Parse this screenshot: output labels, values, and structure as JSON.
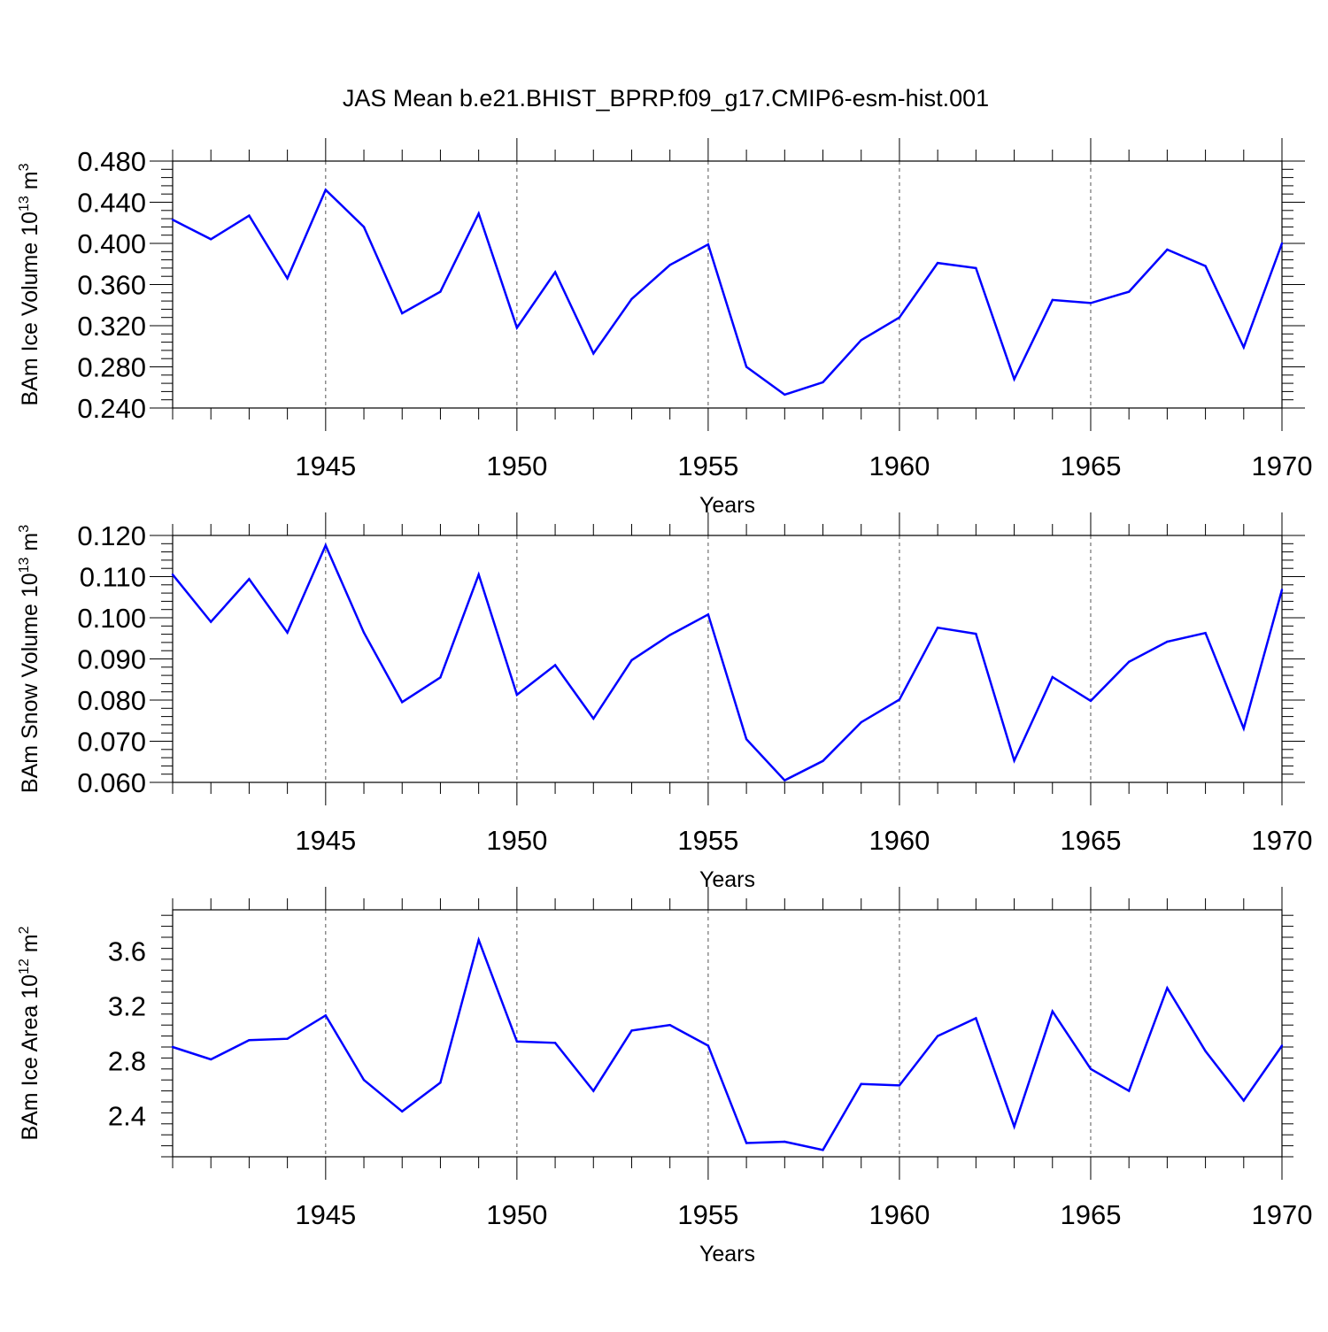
{
  "title": "JAS Mean b.e21.BHIST_BPRP.f09_g17.CMIP6-esm-hist.001",
  "colors": {
    "line": "#0000ff",
    "axis": "#000000",
    "grid": "#555555"
  },
  "chart_data": [
    {
      "type": "line",
      "ylabel_prefix": "BAm Ice Volume 10",
      "ylabel_exp": "13",
      "ylabel_unit": " m",
      "ylabel_unit_exp": "3",
      "xlabel": "Years",
      "xlim": [
        1941,
        1970
      ],
      "ylim": [
        0.24,
        0.48
      ],
      "yticks": [
        "0.480",
        "0.440",
        "0.400",
        "0.360",
        "0.320",
        "0.280",
        "0.240"
      ],
      "ytick_values": [
        0.48,
        0.44,
        0.4,
        0.36,
        0.32,
        0.28,
        0.24
      ],
      "xticks": [
        "1945",
        "1950",
        "1955",
        "1960",
        "1965",
        "1970"
      ],
      "xtick_values": [
        1945,
        1950,
        1955,
        1960,
        1965,
        1970
      ],
      "grid": "vertical dashed at major x ticks",
      "series": [
        {
          "name": "Ice Volume",
          "x": [
            1941,
            1942,
            1943,
            1944,
            1945,
            1946,
            1947,
            1948,
            1949,
            1950,
            1951,
            1952,
            1953,
            1954,
            1955,
            1956,
            1957,
            1958,
            1959,
            1960,
            1961,
            1962,
            1963,
            1964,
            1965,
            1966,
            1967,
            1968,
            1969,
            1970
          ],
          "values": [
            0.423,
            0.404,
            0.427,
            0.366,
            0.452,
            0.416,
            0.332,
            0.353,
            0.429,
            0.318,
            0.372,
            0.293,
            0.346,
            0.379,
            0.399,
            0.28,
            0.253,
            0.265,
            0.306,
            0.328,
            0.381,
            0.376,
            0.268,
            0.345,
            0.342,
            0.353,
            0.394,
            0.378,
            0.299,
            0.4
          ]
        }
      ]
    },
    {
      "type": "line",
      "ylabel_prefix": "BAm Snow Volume 10",
      "ylabel_exp": "13",
      "ylabel_unit": " m",
      "ylabel_unit_exp": "3",
      "xlabel": "Years",
      "xlim": [
        1941,
        1970
      ],
      "ylim": [
        0.06,
        0.12
      ],
      "yticks": [
        "0.120",
        "0.110",
        "0.100",
        "0.090",
        "0.080",
        "0.070",
        "0.060"
      ],
      "ytick_values": [
        0.12,
        0.11,
        0.1,
        0.09,
        0.08,
        0.07,
        0.06
      ],
      "xticks": [
        "1945",
        "1950",
        "1955",
        "1960",
        "1965",
        "1970"
      ],
      "xtick_values": [
        1945,
        1950,
        1955,
        1960,
        1965,
        1970
      ],
      "grid": "vertical dashed at major x ticks",
      "series": [
        {
          "name": "Snow Volume",
          "x": [
            1941,
            1942,
            1943,
            1944,
            1945,
            1946,
            1947,
            1948,
            1949,
            1950,
            1951,
            1952,
            1953,
            1954,
            1955,
            1956,
            1957,
            1958,
            1959,
            1960,
            1961,
            1962,
            1963,
            1964,
            1965,
            1966,
            1967,
            1968,
            1969,
            1970
          ],
          "values": [
            0.1105,
            0.099,
            0.1094,
            0.0964,
            0.1176,
            0.0964,
            0.0795,
            0.0855,
            0.1105,
            0.0813,
            0.0885,
            0.0755,
            0.0897,
            0.0958,
            0.1008,
            0.0705,
            0.0605,
            0.0652,
            0.0746,
            0.0801,
            0.0976,
            0.0961,
            0.0653,
            0.0856,
            0.0798,
            0.0893,
            0.0942,
            0.0963,
            0.0731,
            0.1068
          ]
        }
      ]
    },
    {
      "type": "line",
      "ylabel_prefix": "BAm Ice Area 10",
      "ylabel_exp": "12",
      "ylabel_unit": " m",
      "ylabel_unit_exp": "2",
      "xlabel": "Years",
      "xlim": [
        1941,
        1970
      ],
      "ylim": [
        2.1,
        3.9
      ],
      "yticks": [
        "3.6",
        "3.2",
        "2.8",
        "2.4"
      ],
      "ytick_values": [
        3.6,
        3.2,
        2.8,
        2.4
      ],
      "xticks": [
        "1945",
        "1950",
        "1955",
        "1960",
        "1965",
        "1970"
      ],
      "xtick_values": [
        1945,
        1950,
        1955,
        1960,
        1965,
        1970
      ],
      "grid": "vertical dashed at major x ticks",
      "series": [
        {
          "name": "Ice Area",
          "x": [
            1941,
            1942,
            1943,
            1944,
            1945,
            1946,
            1947,
            1948,
            1949,
            1950,
            1951,
            1952,
            1953,
            1954,
            1955,
            1956,
            1957,
            1958,
            1959,
            1960,
            1961,
            1962,
            1963,
            1964,
            1965,
            1966,
            1967,
            1968,
            1969,
            1970
          ],
          "values": [
            2.9,
            2.81,
            2.95,
            2.96,
            3.13,
            2.66,
            2.43,
            2.64,
            3.68,
            2.94,
            2.93,
            2.58,
            3.02,
            3.06,
            2.91,
            2.2,
            2.21,
            2.15,
            2.63,
            2.62,
            2.98,
            3.11,
            2.32,
            3.16,
            2.74,
            2.58,
            3.33,
            2.87,
            2.51,
            2.91
          ]
        }
      ]
    }
  ]
}
